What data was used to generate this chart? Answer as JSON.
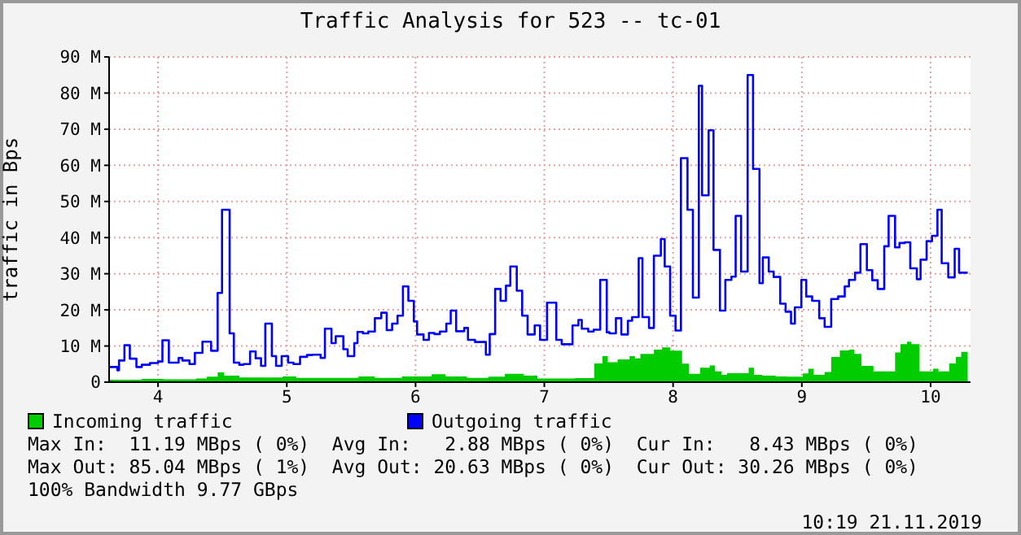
{
  "chart_data": {
    "type": "step",
    "title": "Traffic Analysis for 523 -- tc-01",
    "ylabel": "traffic in Bps",
    "xlim": [
      3.62,
      10.31
    ],
    "xticks": [
      4,
      5,
      6,
      7,
      8,
      9,
      10
    ],
    "ylim": [
      0,
      90
    ],
    "yticks": [
      {
        "value": 0,
        "label": "0"
      },
      {
        "value": 10,
        "label": "10 M"
      },
      {
        "value": 20,
        "label": "20 M"
      },
      {
        "value": 30,
        "label": "30 M"
      },
      {
        "value": 40,
        "label": "40 M"
      },
      {
        "value": 50,
        "label": "50 M"
      },
      {
        "value": 60,
        "label": "60 M"
      },
      {
        "value": 70,
        "label": "70 M"
      },
      {
        "value": 80,
        "label": "80 M"
      },
      {
        "value": 90,
        "label": "90 M"
      }
    ],
    "grid": true,
    "legend": "bottom",
    "series": [
      {
        "name": "Incoming traffic",
        "type": "area",
        "color": "#00cc00",
        "x": [
          3.621,
          3.874,
          4.042,
          4.295,
          4.379,
          4.463,
          4.514,
          4.631,
          4.968,
          5.073,
          5.557,
          5.684,
          5.894,
          6.062,
          6.125,
          6.231,
          6.399,
          6.567,
          6.694,
          6.841,
          6.946,
          7.241,
          7.388,
          7.451,
          7.493,
          7.569,
          7.662,
          7.704,
          7.746,
          7.851,
          7.914,
          7.977,
          8.07,
          8.124,
          8.209,
          8.284,
          8.326,
          8.377,
          8.419,
          8.587,
          8.629,
          8.692,
          8.797,
          8.882,
          9.008,
          9.05,
          9.092,
          9.177,
          9.228,
          9.295,
          9.366,
          9.408,
          9.463,
          9.556,
          9.724,
          9.766,
          9.817,
          9.85,
          9.913,
          10.019,
          10.061,
          10.145,
          10.196,
          10.238,
          10.288
        ],
        "values": [
          0.7,
          0.9,
          0.8,
          1.0,
          1.5,
          2.7,
          1.8,
          1.3,
          1.6,
          1.2,
          1.6,
          1.2,
          1.6,
          1.6,
          2.2,
          1.6,
          1.2,
          1.5,
          2.3,
          1.8,
          1.0,
          1.1,
          5.2,
          7.2,
          5.5,
          6.3,
          7.2,
          6.6,
          7.8,
          9.0,
          9.6,
          8.7,
          5.1,
          2.3,
          4.0,
          4.6,
          3.0,
          2.0,
          2.5,
          4.0,
          2.0,
          1.8,
          1.6,
          1.5,
          2.4,
          3.7,
          2.0,
          2.8,
          7.0,
          8.8,
          9.0,
          7.8,
          4.5,
          3.0,
          8.2,
          10.5,
          11.2,
          10.5,
          3.0,
          3.7,
          3.0,
          5.2,
          7.0,
          8.4,
          8.4
        ]
      },
      {
        "name": "Outgoing traffic",
        "color": "#0000ff",
        "x": [
          3.621,
          3.684,
          3.697,
          3.739,
          3.781,
          3.832,
          3.874,
          3.937,
          4.0,
          4.034,
          4.084,
          4.16,
          4.189,
          4.244,
          4.286,
          4.345,
          4.412,
          4.463,
          4.497,
          4.556,
          4.589,
          4.631,
          4.665,
          4.715,
          4.758,
          4.8,
          4.833,
          4.884,
          4.917,
          4.96,
          5.01,
          5.052,
          5.103,
          5.157,
          5.199,
          5.263,
          5.296,
          5.347,
          5.38,
          5.439,
          5.473,
          5.524,
          5.549,
          5.591,
          5.633,
          5.684,
          5.734,
          5.776,
          5.818,
          5.86,
          5.902,
          5.944,
          5.987,
          6.012,
          6.062,
          6.104,
          6.146,
          6.189,
          6.239,
          6.273,
          6.315,
          6.378,
          6.407,
          6.462,
          6.546,
          6.576,
          6.618,
          6.66,
          6.702,
          6.736,
          6.786,
          6.828,
          6.87,
          6.925,
          6.967,
          7.021,
          7.093,
          7.135,
          7.219,
          7.265,
          7.291,
          7.341,
          7.383,
          7.434,
          7.485,
          7.506,
          7.556,
          7.598,
          7.649,
          7.682,
          7.733,
          7.762,
          7.813,
          7.851,
          7.905,
          7.935,
          7.977,
          8.019,
          8.061,
          8.112,
          8.154,
          8.2,
          8.225,
          8.276,
          8.314,
          8.364,
          8.406,
          8.453,
          8.486,
          8.528,
          8.579,
          8.621,
          8.671,
          8.697,
          8.743,
          8.781,
          8.832,
          8.874,
          8.916,
          8.946,
          8.996,
          9.034,
          9.08,
          9.135,
          9.177,
          9.228,
          9.282,
          9.333,
          9.366,
          9.413,
          9.455,
          9.505,
          9.547,
          9.589,
          9.64,
          9.674,
          9.724,
          9.758,
          9.8,
          9.842,
          9.893,
          9.922,
          9.969,
          10.011,
          10.053,
          10.086,
          10.137,
          10.187,
          10.221,
          10.288
        ],
        "values": [
          4.2,
          3.3,
          6,
          10.2,
          6.5,
          4.2,
          4.8,
          5.3,
          5.7,
          11.6,
          5.4,
          6.7,
          6,
          5,
          8.1,
          11.2,
          8.7,
          24.7,
          47.7,
          13.5,
          5.4,
          4.8,
          5,
          8.5,
          6.6,
          4.5,
          16.2,
          7.2,
          4.5,
          7.2,
          5.4,
          5,
          7,
          7.5,
          7.6,
          6.7,
          14.8,
          10.8,
          12.7,
          9.1,
          7.2,
          10.8,
          13.9,
          13.5,
          14,
          17.7,
          19.2,
          14.4,
          16.2,
          18.4,
          26.5,
          22.5,
          16.8,
          13.2,
          11.7,
          13.6,
          13.3,
          14,
          16.2,
          19.8,
          14.1,
          15,
          11.7,
          11.1,
          7.6,
          13.3,
          25.8,
          22.5,
          26.7,
          32,
          25.3,
          18.4,
          13.2,
          15.7,
          11.7,
          22,
          11.7,
          10.5,
          15.7,
          17.2,
          14.8,
          14,
          14.5,
          28.3,
          13.8,
          13.5,
          17.7,
          13.2,
          17,
          18,
          34.3,
          18,
          15,
          35,
          39.6,
          32,
          18.4,
          14.3,
          62,
          47.7,
          23.4,
          82,
          51.7,
          69.7,
          36.6,
          19.8,
          28.3,
          29.2,
          46,
          30.6,
          85,
          59,
          27.4,
          34.5,
          30.6,
          29.1,
          21.7,
          19.5,
          16.2,
          20.7,
          28.3,
          23.7,
          22.5,
          17.7,
          15.3,
          23,
          23.7,
          26.5,
          28.3,
          30.3,
          38.2,
          31,
          28.2,
          25.8,
          37.6,
          46,
          37.3,
          38.5,
          38.7,
          31.5,
          28.5,
          33.9,
          39,
          40.5,
          47.7,
          32.9,
          29,
          36.9,
          30.3,
          30.3
        ]
      }
    ],
    "annotations": [
      "Max In:  11.19 MBps ( 0%)  Avg In:   2.88 MBps ( 0%)  Cur In:   8.43 MBps ( 0%)",
      "Max Out: 85.04 MBps ( 1%)  Avg Out: 20.63 MBps ( 0%)  Cur Out: 30.26 MBps ( 0%)",
      "100% Bandwidth 9.77 GBps",
      "10:19 21.11.2019"
    ]
  }
}
